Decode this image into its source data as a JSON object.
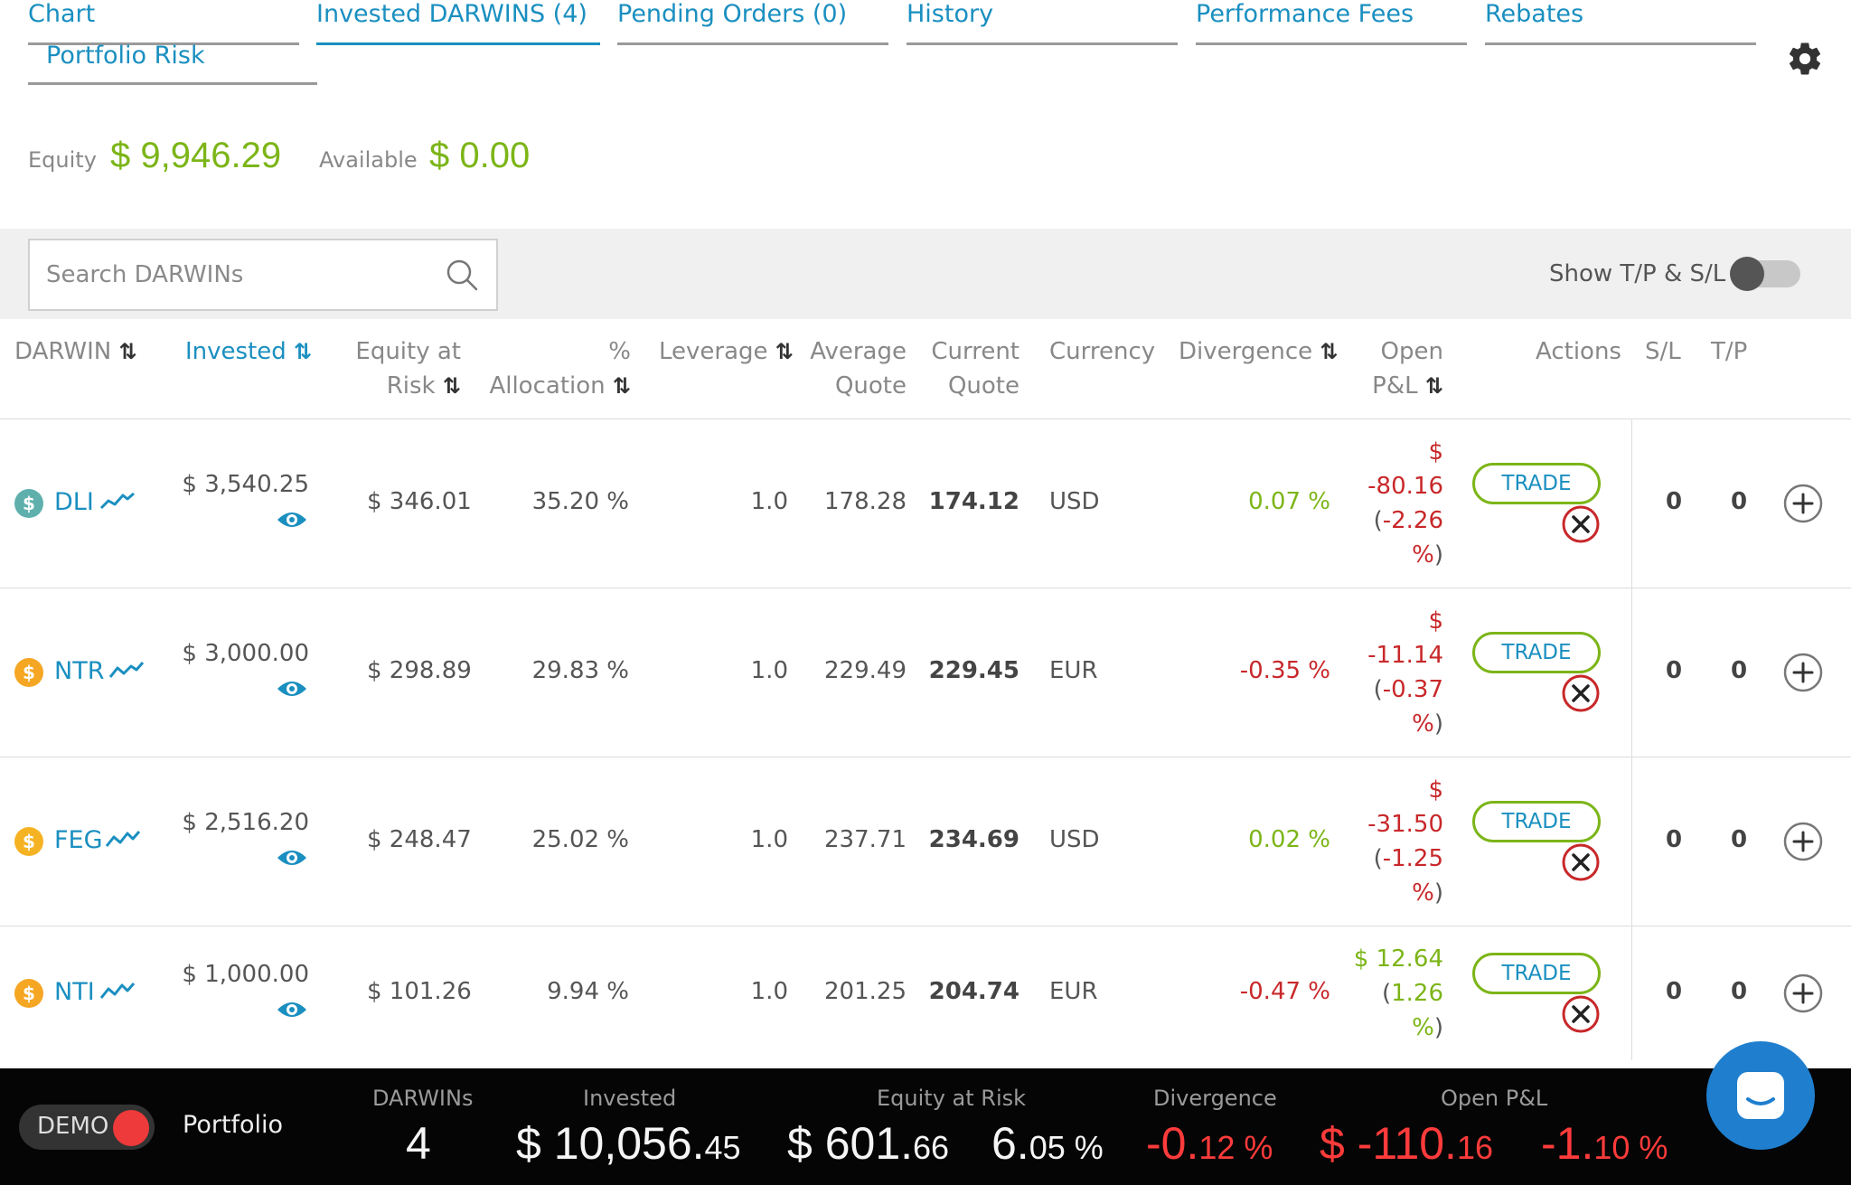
{
  "tabs": [
    {
      "label": "Chart"
    },
    {
      "label": "Invested DARWINS (4)"
    },
    {
      "label": "Pending Orders (0)"
    },
    {
      "label": "History"
    },
    {
      "label": "Performance Fees"
    },
    {
      "label": "Rebates"
    },
    {
      "label": "Portfolio Risk"
    }
  ],
  "active_tab": "Invested DARWINS (4)",
  "summary": {
    "equity_label": "Equity",
    "equity_value": "$ 9,946.29",
    "available_label": "Available",
    "available_value": "$ 0.00"
  },
  "search": {
    "placeholder": "Search DARWINs",
    "value": ""
  },
  "toggle": {
    "label": "Show T/P & S/L",
    "on": false
  },
  "columns": {
    "darwin": "DARWIN",
    "invested": "Invested",
    "equity_at_risk_1": "Equity at",
    "equity_at_risk_2": "Risk",
    "allocation_1": "%",
    "allocation_2": "Allocation",
    "leverage": "Leverage",
    "avg_quote_1": "Average",
    "avg_quote_2": "Quote",
    "cur_quote_1": "Current",
    "cur_quote_2": "Quote",
    "currency": "Currency",
    "divergence": "Divergence",
    "pnl_1": "Open",
    "pnl_2": "P&L",
    "actions": "Actions",
    "sl": "S/L",
    "tp": "T/P"
  },
  "rows": [
    {
      "name": "DLI",
      "coin_color": "#5fb0ad",
      "invested": "$ 3,540.25",
      "equity_at_risk": "$ 346.01",
      "allocation": "35.20 %",
      "leverage": "1.0",
      "avg_quote": "178.28",
      "cur_quote": "174.12",
      "currency": "USD",
      "divergence": "0.07 %",
      "divergence_sign": "pos",
      "pnl_l1": "$",
      "pnl_l2": "-80.16",
      "pnl_l3a": "(",
      "pnl_l3b": "-2.26",
      "pnl_l4a": "%",
      "pnl_l4b": ")",
      "pnl_sign": "neg",
      "trade": "TRADE",
      "sl": "0",
      "tp": "0"
    },
    {
      "name": "NTR",
      "coin_color": "#f5a623",
      "invested": "$ 3,000.00",
      "equity_at_risk": "$ 298.89",
      "allocation": "29.83 %",
      "leverage": "1.0",
      "avg_quote": "229.49",
      "cur_quote": "229.45",
      "currency": "EUR",
      "divergence": "-0.35 %",
      "divergence_sign": "neg",
      "pnl_l1": "$",
      "pnl_l2": "-11.14",
      "pnl_l3a": "(",
      "pnl_l3b": "-0.37",
      "pnl_l4a": "%",
      "pnl_l4b": ")",
      "pnl_sign": "neg",
      "trade": "TRADE",
      "sl": "0",
      "tp": "0"
    },
    {
      "name": "FEG",
      "coin_color": "#f5b323",
      "invested": "$ 2,516.20",
      "equity_at_risk": "$ 248.47",
      "allocation": "25.02 %",
      "leverage": "1.0",
      "avg_quote": "237.71",
      "cur_quote": "234.69",
      "currency": "USD",
      "divergence": "0.02 %",
      "divergence_sign": "pos",
      "pnl_l1": "$",
      "pnl_l2": "-31.50",
      "pnl_l3a": "(",
      "pnl_l3b": "-1.25",
      "pnl_l4a": "%",
      "pnl_l4b": ")",
      "pnl_sign": "neg",
      "trade": "TRADE",
      "sl": "0",
      "tp": "0"
    },
    {
      "name": "NTI",
      "coin_color": "#f5a623",
      "invested": "$ 1,000.00",
      "equity_at_risk": "$ 101.26",
      "allocation": "9.94 %",
      "leverage": "1.0",
      "avg_quote": "201.25",
      "cur_quote": "204.74",
      "currency": "EUR",
      "divergence": "-0.47 %",
      "divergence_sign": "neg",
      "pnl_l1": "$ 12.64",
      "pnl_l2a": "(",
      "pnl_l2b": "1.26",
      "pnl_l3": "%",
      "pnl_l3b": ")",
      "pnl_sign": "pos",
      "trade": "TRADE",
      "sl": "0",
      "tp": "0"
    }
  ],
  "bottom_bar": {
    "mode": "DEMO",
    "portfolio_label": "Portfolio",
    "darwins_label": "DARWINs",
    "darwins_value": "4",
    "invested_label": "Invested",
    "invested_main": "$ 10,056.",
    "invested_cents": "45",
    "equity_label": "Equity at Risk",
    "equity_main": "$ 601.",
    "equity_cents": "66",
    "equity_pct_main": "6.",
    "equity_pct_cents": "05 %",
    "divergence_label": "Divergence",
    "divergence_main": "-0.",
    "divergence_cents": "12 %",
    "pnl_label": "Open P&L",
    "pnl_main": "$ -110.",
    "pnl_cents": "16",
    "pnl_pct_main": "-1.",
    "pnl_pct_cents": "10 %"
  },
  "colors": {
    "accent": "#1a8fc0",
    "positive": "#7cb518",
    "negative": "#c8282a",
    "bottom_bar": "#050505",
    "chat": "#1f7fce"
  }
}
